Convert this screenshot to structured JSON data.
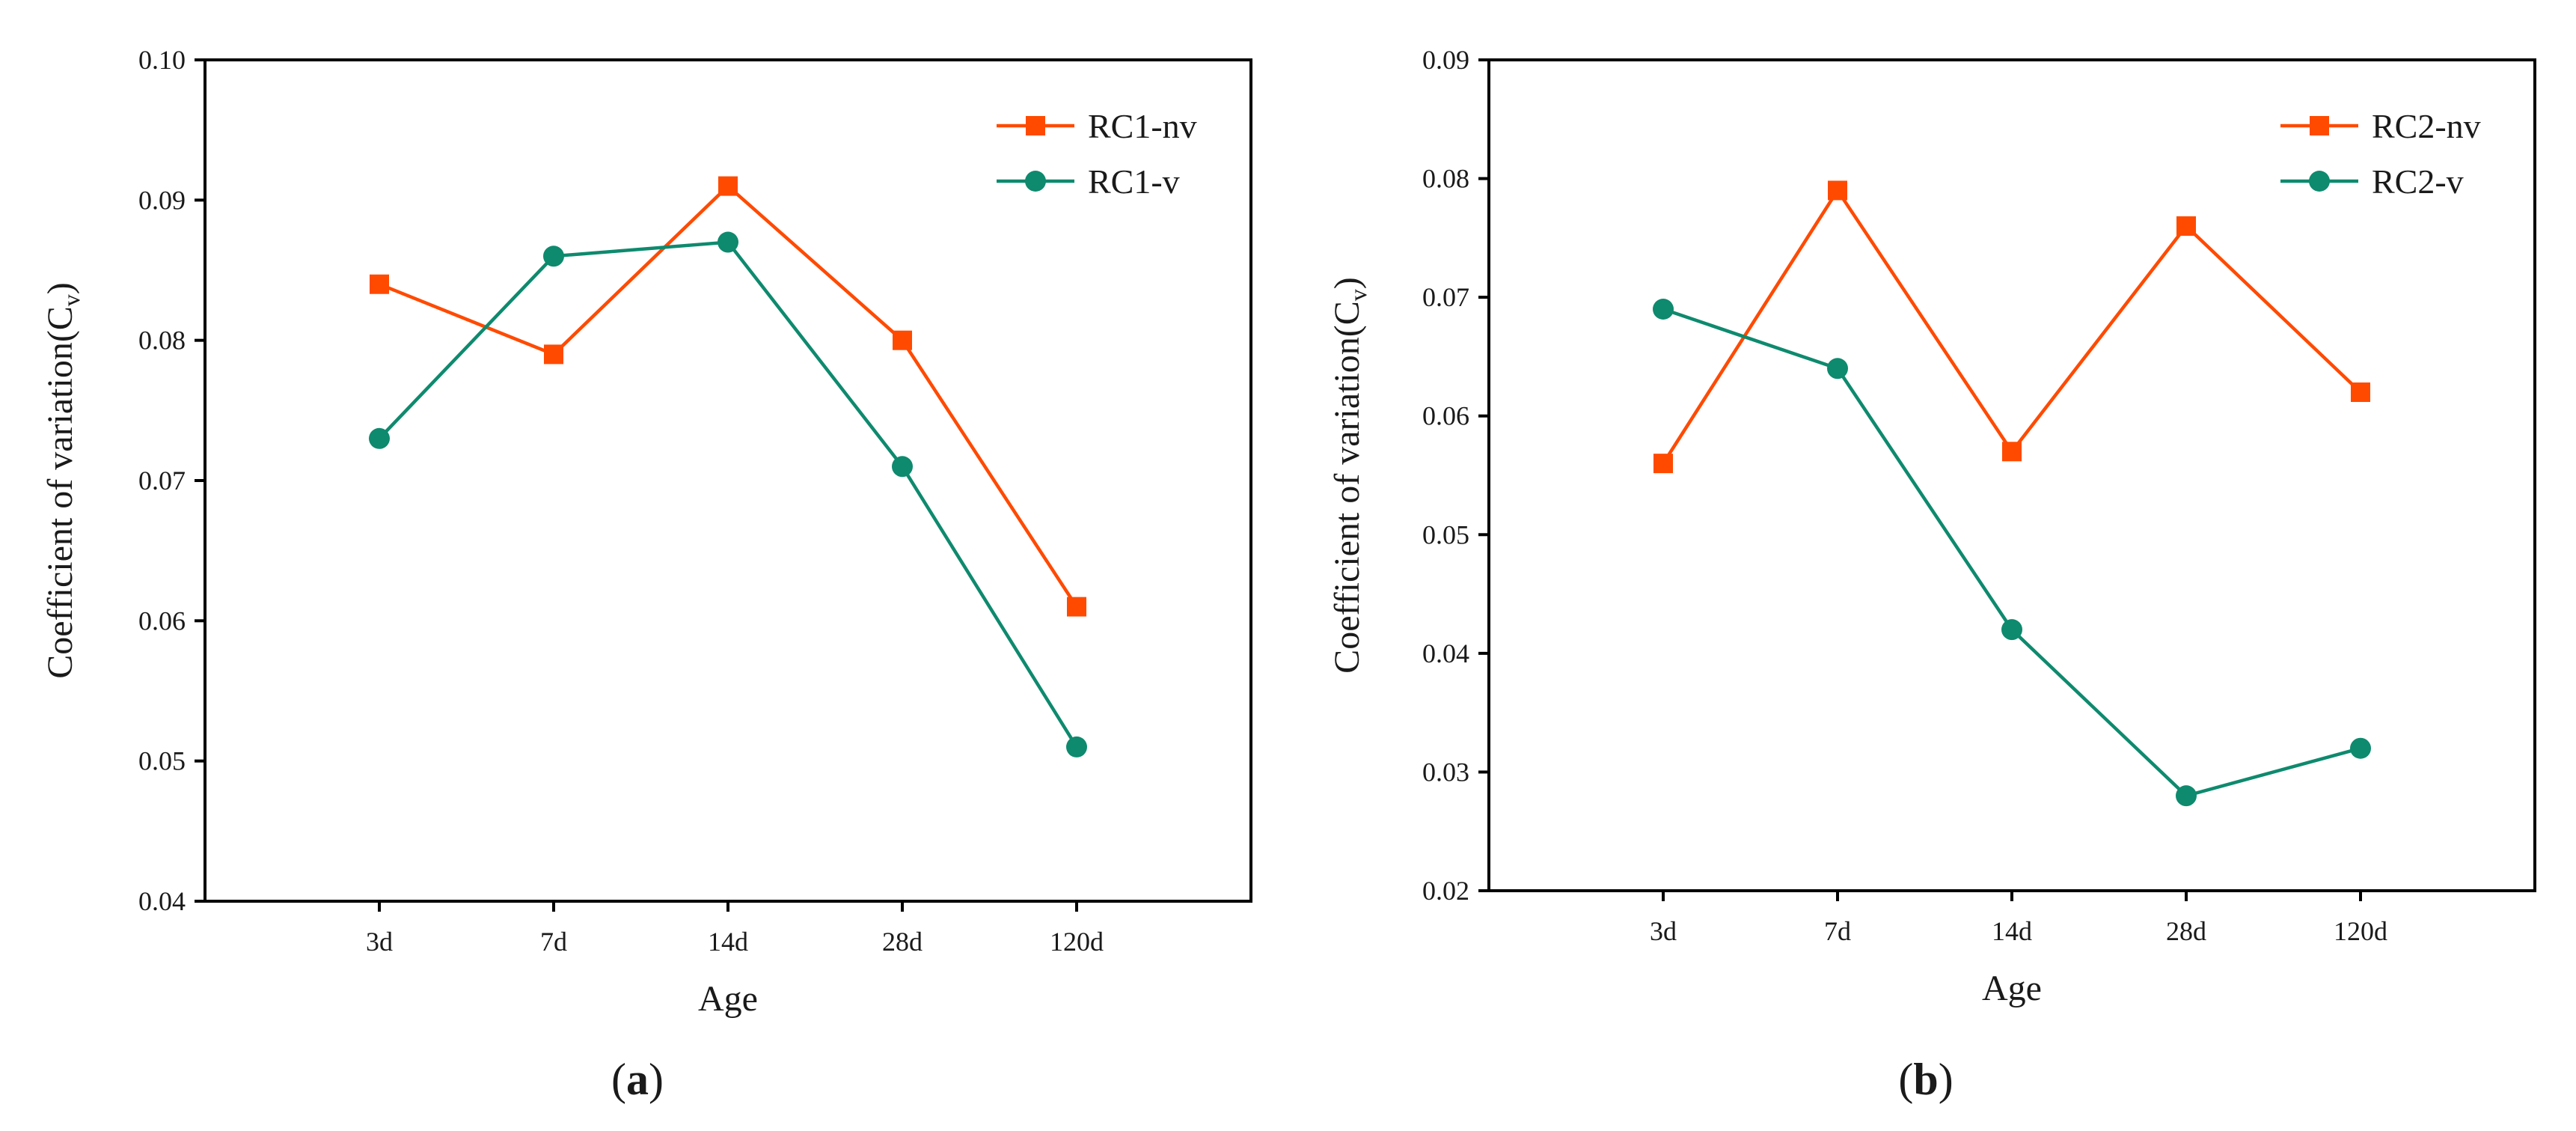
{
  "chart_data": [
    {
      "type": "line",
      "panel_label": "a",
      "categories": [
        "3d",
        "7d",
        "14d",
        "28d",
        "120d"
      ],
      "xlabel": "Age",
      "ylabel": "Coefficient of variation(C",
      "ylabel_sub": "v",
      "ylabel_close": ")",
      "ylim": [
        0.04,
        0.1
      ],
      "yticks": [
        "0.04",
        "0.05",
        "0.06",
        "0.07",
        "0.08",
        "0.09",
        "0.10"
      ],
      "legend_position": "top-right",
      "series": [
        {
          "name": "RC1-nv",
          "marker": "square",
          "color": "#ff4a00",
          "values": [
            0.084,
            0.079,
            0.091,
            0.08,
            0.061
          ]
        },
        {
          "name": "RC1-v",
          "marker": "circle",
          "color": "#0e8a6e",
          "values": [
            0.073,
            0.086,
            0.087,
            0.071,
            0.051
          ]
        }
      ]
    },
    {
      "type": "line",
      "panel_label": "b",
      "categories": [
        "3d",
        "7d",
        "14d",
        "28d",
        "120d"
      ],
      "xlabel": "Age",
      "ylabel": "Coefficient of variation(C",
      "ylabel_sub": "v",
      "ylabel_close": ")",
      "ylim": [
        0.02,
        0.09
      ],
      "yticks": [
        "0.02",
        "0.03",
        "0.04",
        "0.05",
        "0.06",
        "0.07",
        "0.08",
        "0.09"
      ],
      "legend_position": "top-right",
      "series": [
        {
          "name": "RC2-nv",
          "marker": "square",
          "color": "#ff4a00",
          "values": [
            0.056,
            0.079,
            0.057,
            0.076,
            0.062
          ]
        },
        {
          "name": "RC2-v",
          "marker": "circle",
          "color": "#0e8a6e",
          "values": [
            0.069,
            0.064,
            0.042,
            0.028,
            0.032
          ]
        }
      ]
    }
  ]
}
